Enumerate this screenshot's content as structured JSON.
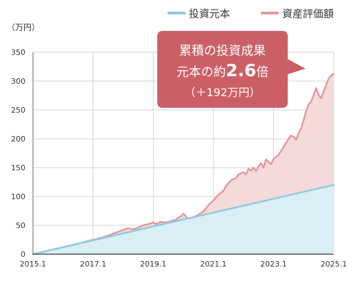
{
  "chart_data": {
    "type": "area",
    "unit_label": "（万円）",
    "ylim": [
      0,
      350
    ],
    "yticks": [
      0,
      50,
      100,
      150,
      200,
      250,
      300,
      350
    ],
    "xlim": [
      "2015-01",
      "2025-01"
    ],
    "xticks": [
      "2015.1",
      "2017.1",
      "2019.1",
      "2021.1",
      "2023.1",
      "2025.1"
    ],
    "grid": true,
    "legend_position": "top-right",
    "series": [
      {
        "name": "投資元本",
        "color": "#8ecae0",
        "fill": "#d9eef5",
        "points": [
          [
            "2015-01",
            0
          ],
          [
            "2025-01",
            120
          ]
        ]
      },
      {
        "name": "資産評価額",
        "color": "#e3999b",
        "fill": "#f5dada",
        "points": [
          [
            "2015-01",
            0
          ],
          [
            "2015-07",
            6
          ],
          [
            "2016-01",
            12
          ],
          [
            "2016-07",
            18
          ],
          [
            "2017-01",
            25
          ],
          [
            "2017-04",
            28
          ],
          [
            "2017-07",
            32
          ],
          [
            "2017-10",
            37
          ],
          [
            "2018-01",
            42
          ],
          [
            "2018-03",
            45
          ],
          [
            "2018-05",
            43
          ],
          [
            "2018-07",
            46
          ],
          [
            "2018-09",
            50
          ],
          [
            "2018-11",
            52
          ],
          [
            "2019-01",
            55
          ],
          [
            "2019-02",
            52
          ],
          [
            "2019-04",
            56
          ],
          [
            "2019-06",
            55
          ],
          [
            "2019-08",
            57
          ],
          [
            "2019-10",
            60
          ],
          [
            "2019-12",
            66
          ],
          [
            "2020-01",
            70
          ],
          [
            "2020-02",
            66
          ],
          [
            "2020-03",
            56
          ],
          [
            "2020-05",
            64
          ],
          [
            "2020-07",
            68
          ],
          [
            "2020-09",
            74
          ],
          [
            "2020-11",
            85
          ],
          [
            "2021-01",
            93
          ],
          [
            "2021-03",
            103
          ],
          [
            "2021-05",
            110
          ],
          [
            "2021-06",
            118
          ],
          [
            "2021-08",
            128
          ],
          [
            "2021-10",
            132
          ],
          [
            "2021-11",
            138
          ],
          [
            "2022-01",
            142
          ],
          [
            "2022-02",
            138
          ],
          [
            "2022-03",
            148
          ],
          [
            "2022-04",
            145
          ],
          [
            "2022-05",
            150
          ],
          [
            "2022-06",
            144
          ],
          [
            "2022-07",
            152
          ],
          [
            "2022-08",
            158
          ],
          [
            "2022-09",
            150
          ],
          [
            "2022-10",
            164
          ],
          [
            "2022-11",
            160
          ],
          [
            "2022-12",
            156
          ],
          [
            "2023-01",
            165
          ],
          [
            "2023-03",
            172
          ],
          [
            "2023-05",
            186
          ],
          [
            "2023-07",
            200
          ],
          [
            "2023-08",
            206
          ],
          [
            "2023-09",
            203
          ],
          [
            "2023-10",
            198
          ],
          [
            "2023-11",
            210
          ],
          [
            "2023-12",
            218
          ],
          [
            "2024-01",
            232
          ],
          [
            "2024-02",
            248
          ],
          [
            "2024-03",
            260
          ],
          [
            "2024-04",
            264
          ],
          [
            "2024-05",
            276
          ],
          [
            "2024-06",
            288
          ],
          [
            "2024-07",
            276
          ],
          [
            "2024-08",
            270
          ],
          [
            "2024-09",
            282
          ],
          [
            "2024-10",
            294
          ],
          [
            "2024-11",
            304
          ],
          [
            "2024-12",
            310
          ],
          [
            "2025-01",
            312
          ]
        ]
      }
    ],
    "annotation": {
      "line1": "累積の投資成果",
      "line2_prefix": "元本の約",
      "line2_value": "2.6",
      "line2_suffix": "倍",
      "line3": "（＋192万円）",
      "color": "#cc5f66"
    }
  }
}
